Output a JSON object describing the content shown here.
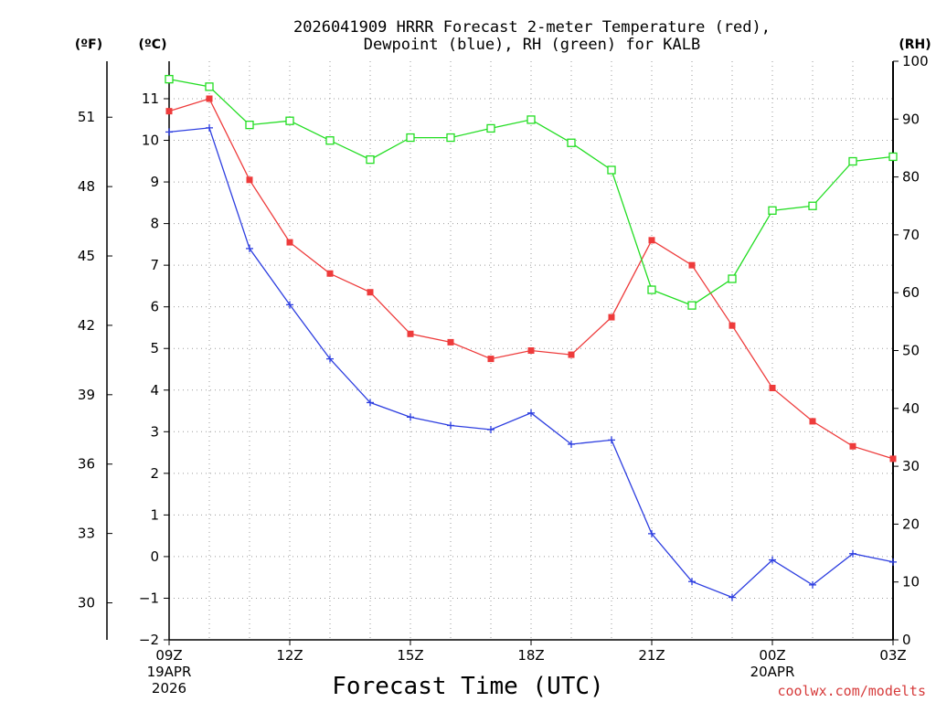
{
  "chart_data": {
    "type": "line",
    "title_line1": "2026041909 HRRR Forecast 2-meter Temperature (red),",
    "title_line2": "Dewpoint (blue), RH (green) for KALB",
    "xlabel": "Forecast Time (UTC)",
    "credit": "coolwx.com/modelts",
    "left_unit_f": "(ºF)",
    "left_unit_c": "(ºC)",
    "right_unit": "(RH)",
    "hours": [
      0,
      1,
      2,
      3,
      4,
      5,
      6,
      7,
      8,
      9,
      10,
      11,
      12,
      13,
      14,
      15,
      16,
      17,
      18
    ],
    "x_ticks": [
      {
        "hour": 0,
        "label": "09Z",
        "sub1": "19APR",
        "sub2": "2026"
      },
      {
        "hour": 3,
        "label": "12Z"
      },
      {
        "hour": 6,
        "label": "15Z"
      },
      {
        "hour": 9,
        "label": "18Z"
      },
      {
        "hour": 12,
        "label": "21Z"
      },
      {
        "hour": 15,
        "label": "00Z",
        "sub1": "20APR"
      },
      {
        "hour": 18,
        "label": "03Z"
      }
    ],
    "y_celsius": {
      "min": -2,
      "max": 11.9,
      "ticks": [
        -2,
        -1,
        0,
        1,
        2,
        3,
        4,
        5,
        6,
        7,
        8,
        9,
        10,
        11
      ]
    },
    "y_fahrenheit_ticks": [
      30,
      33,
      36,
      39,
      42,
      45,
      48,
      51
    ],
    "y_rh": {
      "min": 0,
      "max": 100,
      "ticks": [
        0,
        10,
        20,
        30,
        40,
        50,
        60,
        70,
        80,
        90,
        100
      ]
    },
    "series": [
      {
        "name": "Temperature",
        "unit": "C",
        "color": "#ee3b3b",
        "marker": "filled-square",
        "values": [
          10.7,
          11.0,
          9.05,
          7.55,
          6.8,
          6.35,
          5.35,
          5.15,
          4.75,
          4.95,
          4.85,
          5.75,
          7.6,
          7.0,
          5.55,
          4.05,
          3.25,
          2.65,
          2.35
        ]
      },
      {
        "name": "Dewpoint",
        "unit": "C",
        "color": "#2d3ee0",
        "marker": "plus",
        "values": [
          10.2,
          10.3,
          7.4,
          6.05,
          4.75,
          3.7,
          3.35,
          3.15,
          3.05,
          3.45,
          2.7,
          2.8,
          0.55,
          -0.6,
          -0.98,
          -0.08,
          -0.68,
          0.07,
          -0.13
        ]
      },
      {
        "name": "RH",
        "unit": "%",
        "color": "#22dd22",
        "marker": "open-square",
        "values": [
          96.9,
          95.6,
          89.0,
          89.7,
          86.3,
          83.0,
          86.8,
          86.8,
          88.4,
          89.9,
          85.9,
          81.2,
          60.5,
          57.8,
          62.4,
          74.2,
          75.0,
          82.7,
          83.5
        ]
      }
    ]
  }
}
